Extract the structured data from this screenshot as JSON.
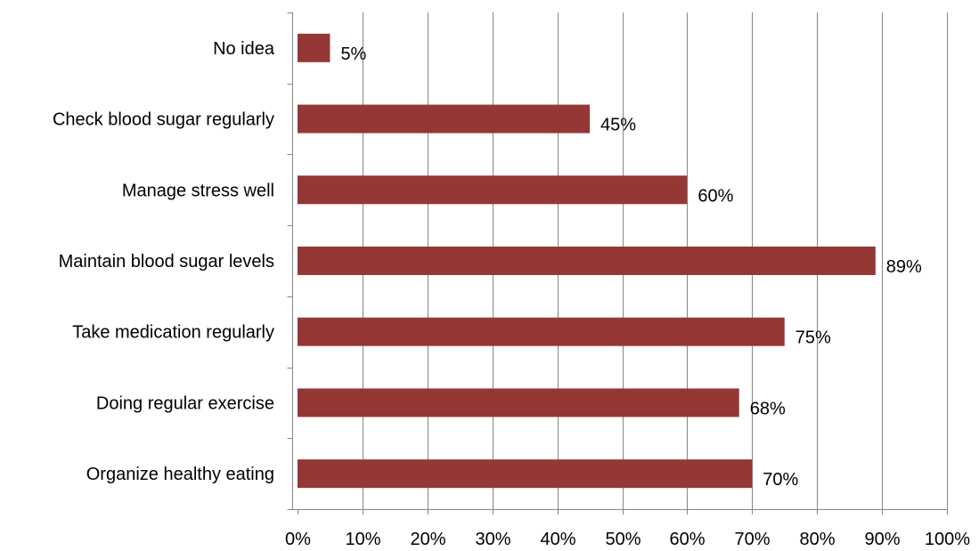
{
  "chart_data": {
    "type": "bar",
    "orientation": "horizontal",
    "title": "",
    "xlabel": "",
    "ylabel": "",
    "categories": [
      "No idea",
      "Check blood sugar regularly",
      "Manage stress well",
      "Maintain blood sugar levels",
      "Take medication regularly",
      "Doing regular exercise",
      "Organize healthy eating"
    ],
    "values": [
      5,
      45,
      60,
      89,
      75,
      68,
      70
    ],
    "data_labels": [
      "5%",
      "45%",
      "60%",
      "89%",
      "75%",
      "68%",
      "70%"
    ],
    "xlim": [
      0,
      100
    ],
    "xticks": [
      0,
      10,
      20,
      30,
      40,
      50,
      60,
      70,
      80,
      90,
      100
    ],
    "xtick_labels": [
      "0%",
      "10%",
      "20%",
      "30%",
      "40%",
      "50%",
      "60%",
      "70%",
      "80%",
      "90%",
      "100%"
    ],
    "grid": "vertical",
    "legend": "none",
    "bar_color": "#953735",
    "grid_color": "#868686"
  }
}
